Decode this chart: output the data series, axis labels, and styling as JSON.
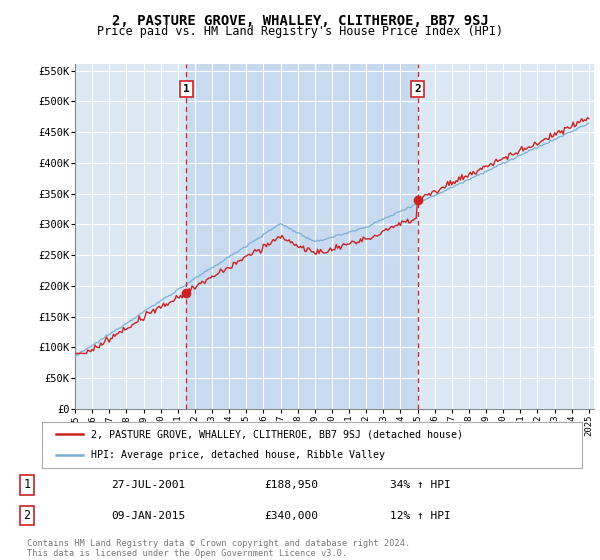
{
  "title": "2, PASTURE GROVE, WHALLEY, CLITHEROE, BB7 9SJ",
  "subtitle": "Price paid vs. HM Land Registry's House Price Index (HPI)",
  "red_label": "2, PASTURE GROVE, WHALLEY, CLITHEROE, BB7 9SJ (detached house)",
  "blue_label": "HPI: Average price, detached house, Ribble Valley",
  "transaction1_date": "27-JUL-2001",
  "transaction1_price": "£188,950",
  "transaction1_hpi": "34% ↑ HPI",
  "transaction2_date": "09-JAN-2015",
  "transaction2_price": "£340,000",
  "transaction2_hpi": "12% ↑ HPI",
  "footnote": "Contains HM Land Registry data © Crown copyright and database right 2024.\nThis data is licensed under the Open Government Licence v3.0.",
  "ylim": [
    0,
    560000
  ],
  "background_color": "#dce9f5",
  "stripe_color": "#c8daf0",
  "plot_bg": "#dce9f5"
}
